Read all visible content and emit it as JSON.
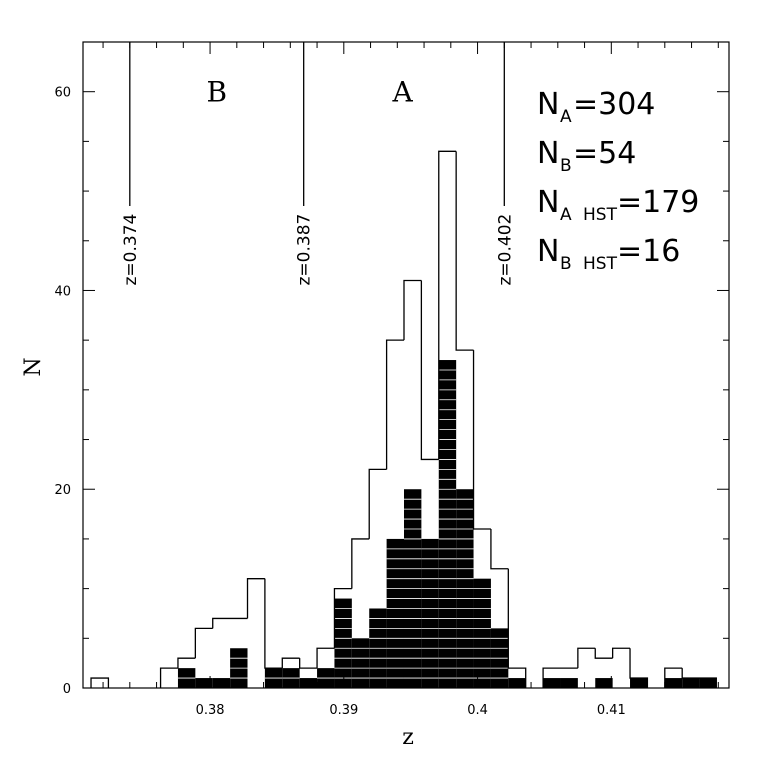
{
  "chart_data": {
    "type": "bar",
    "xlabel": "z",
    "ylabel": "N",
    "xlim": [
      0.3705,
      0.4188
    ],
    "ylim": [
      0,
      65
    ],
    "bin_width": 0.0013,
    "x_ticks": [
      0.38,
      0.39,
      0.4,
      0.41
    ],
    "x_tick_labels": [
      "0.38",
      "0.39",
      "0.4",
      "0.41"
    ],
    "y_ticks": [
      0,
      20,
      40,
      60
    ],
    "y_tick_labels": [
      "0",
      "20",
      "40",
      "60"
    ],
    "x_minor_step": 0.002,
    "y_minor_step": 5,
    "grid": false,
    "series": [
      {
        "fill": "none",
        "color": "#000000",
        "bin_edges": [
          0.3711,
          0.3724,
          0.3737,
          0.375,
          0.3763,
          0.3776,
          0.3789,
          0.3802,
          0.3815,
          0.3828,
          0.3841,
          0.3854,
          0.3867,
          0.388,
          0.3893,
          0.3906,
          0.3919,
          0.3932,
          0.3945,
          0.3958,
          0.3971,
          0.3984,
          0.3997,
          0.401,
          0.4023,
          0.4036,
          0.4049,
          0.4062,
          0.4075,
          0.4088,
          0.4101,
          0.4114,
          0.4127,
          0.414,
          0.4153,
          0.4166,
          0.4179
        ],
        "counts": [
          1,
          0,
          0,
          0,
          2,
          3,
          6,
          7,
          7,
          11,
          2,
          3,
          2,
          4,
          10,
          15,
          22,
          35,
          41,
          23,
          54,
          34,
          16,
          12,
          2,
          0,
          2,
          2,
          4,
          3,
          4,
          1,
          0,
          2,
          1,
          1,
          1
        ]
      },
      {
        "fill": "#000000",
        "color": "#000000",
        "bin_edges": [
          0.3711,
          0.3724,
          0.3737,
          0.375,
          0.3763,
          0.3776,
          0.3789,
          0.3802,
          0.3815,
          0.3828,
          0.3841,
          0.3854,
          0.3867,
          0.388,
          0.3893,
          0.3906,
          0.3919,
          0.3932,
          0.3945,
          0.3958,
          0.3971,
          0.3984,
          0.3997,
          0.401,
          0.4023,
          0.4036,
          0.4049,
          0.4062,
          0.4075,
          0.4088,
          0.4101,
          0.4114,
          0.4127,
          0.414,
          0.4153,
          0.4166,
          0.4179
        ],
        "counts": [
          0,
          0,
          0,
          0,
          0,
          2,
          1,
          1,
          4,
          0,
          2,
          2,
          1,
          2,
          9,
          5,
          8,
          15,
          20,
          15,
          33,
          20,
          11,
          6,
          1,
          0,
          1,
          1,
          0,
          1,
          0,
          1,
          0,
          1,
          1,
          1,
          1
        ]
      }
    ],
    "reference_lines": [
      {
        "z": 0.374,
        "label": "z=0.374"
      },
      {
        "z": 0.387,
        "label": "z=0.387"
      },
      {
        "z": 0.402,
        "label": "z=0.402"
      }
    ],
    "region_labels": [
      {
        "text": "B",
        "z": 0.3805,
        "y": 59
      },
      {
        "text": "A",
        "z": 0.3944,
        "y": 59
      }
    ],
    "annotations": [
      {
        "main": "N",
        "sub": "A",
        "subtail": "",
        "value": "=304"
      },
      {
        "main": "N",
        "sub": "B",
        "subtail": "",
        "value": "=54"
      },
      {
        "main": "N",
        "sub": "A",
        "subtail": "HST",
        "value": "=179"
      },
      {
        "main": "N",
        "sub": "B",
        "subtail": "HST",
        "value": "=16"
      }
    ]
  }
}
